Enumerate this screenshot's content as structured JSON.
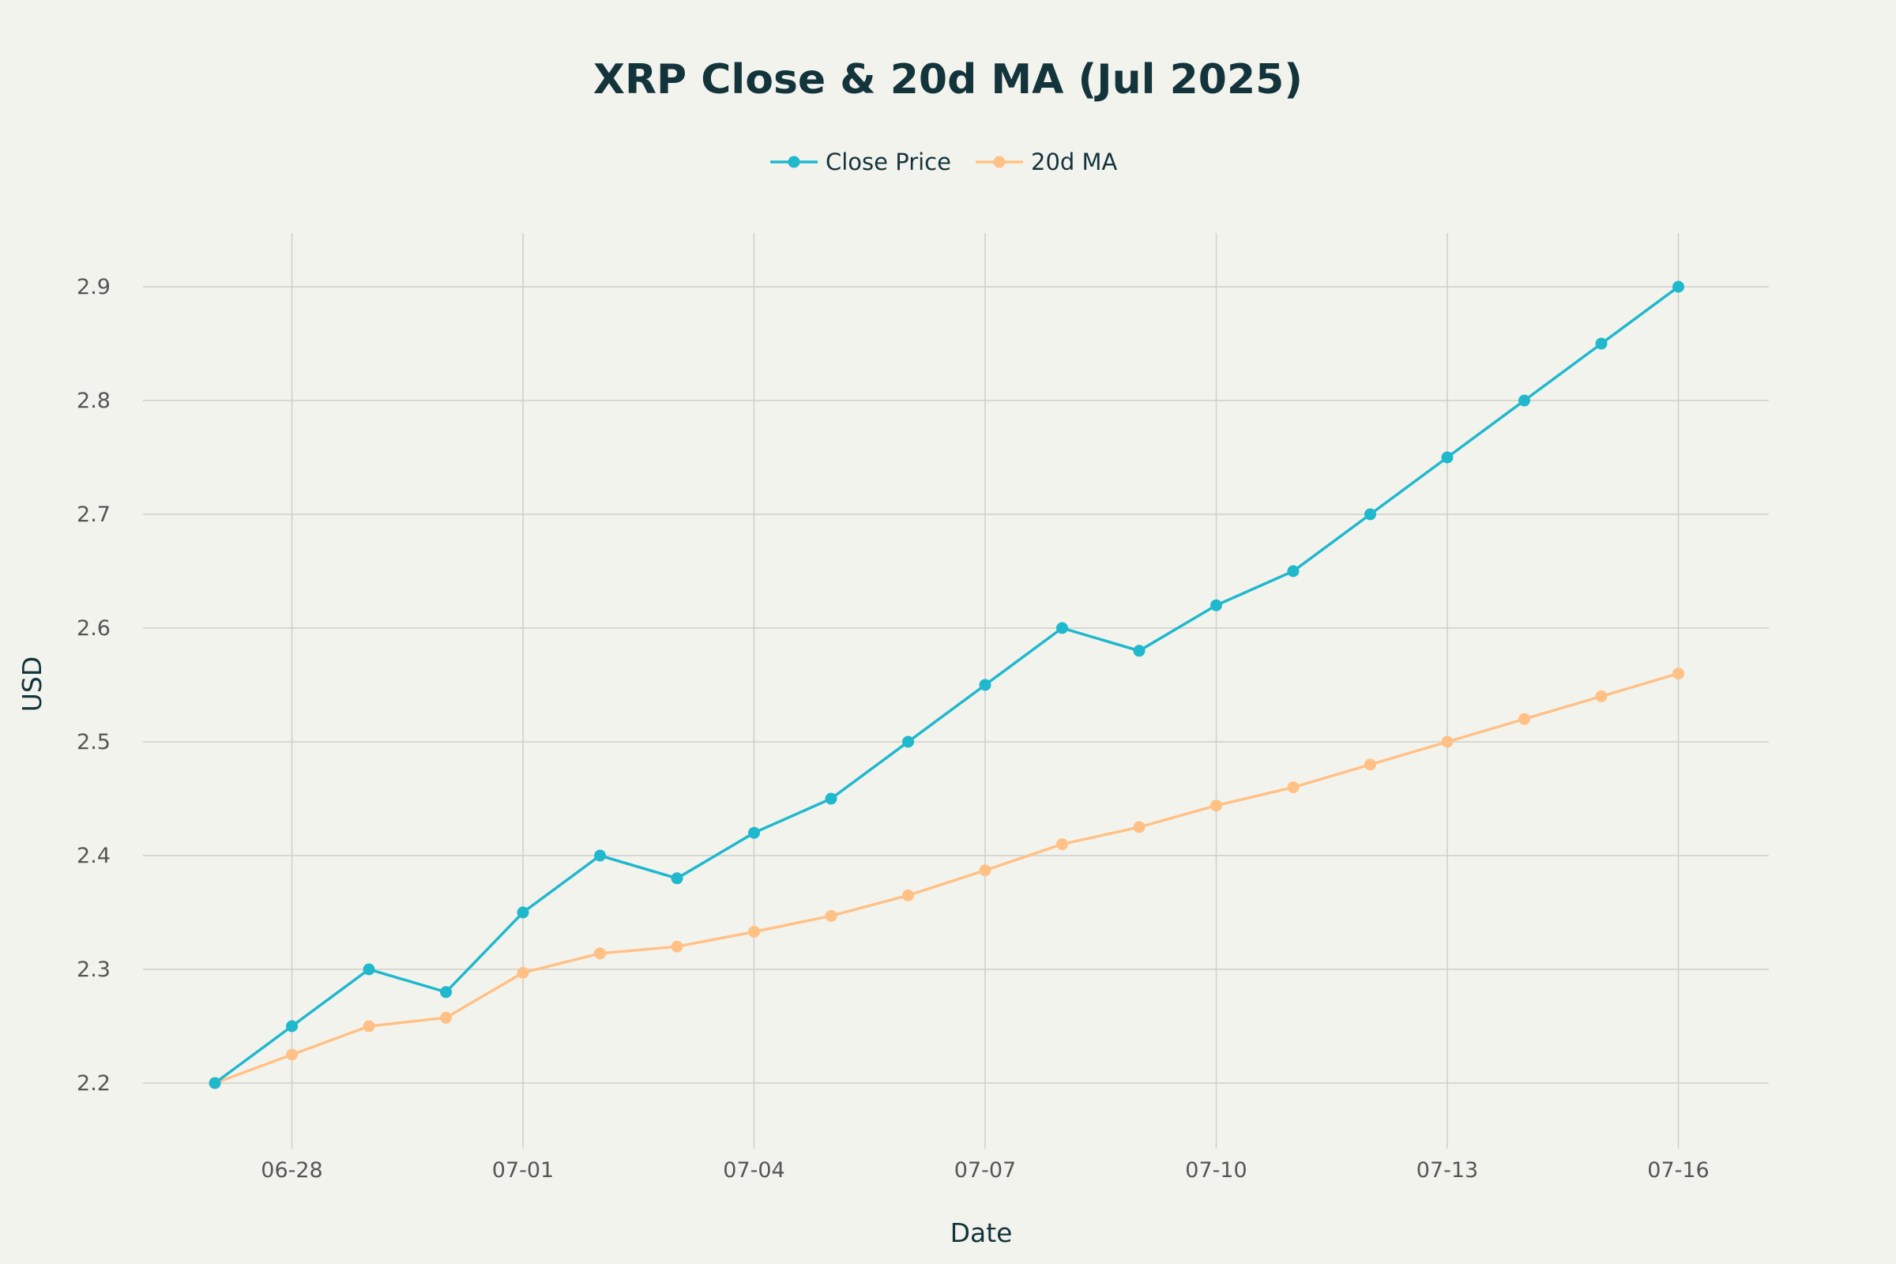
{
  "chart_data": {
    "type": "line",
    "title": "XRP Close & 20d MA (Jul 2025)",
    "xlabel": "Date",
    "ylabel": "USD",
    "x": [
      "06-27",
      "06-28",
      "06-29",
      "06-30",
      "07-01",
      "07-02",
      "07-03",
      "07-04",
      "07-05",
      "07-06",
      "07-07",
      "07-08",
      "07-09",
      "07-10",
      "07-11",
      "07-12",
      "07-13",
      "07-14",
      "07-15",
      "07-16"
    ],
    "x_ticks": [
      "06-28",
      "07-01",
      "07-04",
      "07-07",
      "07-10",
      "07-13",
      "07-16"
    ],
    "y_ticks": [
      2.2,
      2.3,
      2.4,
      2.5,
      2.6,
      2.7,
      2.8,
      2.9
    ],
    "y_tick_labels": [
      "2.2",
      "2.3",
      "2.4",
      "2.5",
      "2.6",
      "2.7",
      "2.8",
      "2.9"
    ],
    "ylim": [
      2.15,
      2.95
    ],
    "grid": true,
    "legend_position": "top-center",
    "series": [
      {
        "name": "Close Price",
        "color": "#1FB8CD",
        "values": [
          2.2,
          2.25,
          2.3,
          2.28,
          2.35,
          2.4,
          2.38,
          2.42,
          2.45,
          2.5,
          2.55,
          2.6,
          2.58,
          2.62,
          2.65,
          2.7,
          2.75,
          2.8,
          2.85,
          2.9
        ]
      },
      {
        "name": "20d MA",
        "color": "#FFC185",
        "values": [
          2.2,
          2.225,
          2.25,
          2.2575,
          2.297,
          2.314,
          2.32,
          2.333,
          2.347,
          2.365,
          2.387,
          2.41,
          2.425,
          2.444,
          2.46,
          2.48,
          2.5,
          2.52,
          2.54,
          2.56
        ]
      }
    ]
  }
}
